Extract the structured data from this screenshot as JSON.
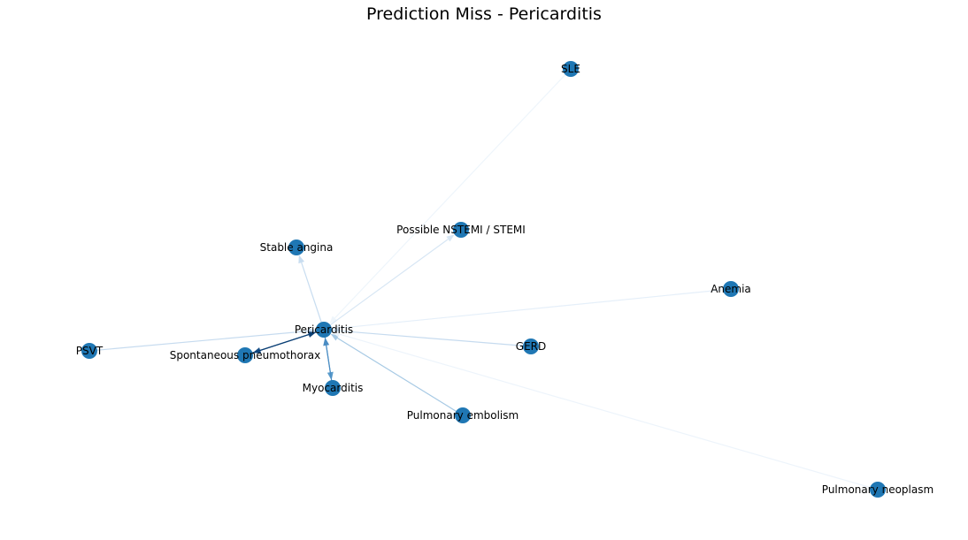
{
  "title": "Prediction Miss - Pericarditis",
  "node_color": "#1f77b4",
  "nodes": [
    {
      "id": "pericarditis",
      "label": "Pericarditis"
    },
    {
      "id": "sle",
      "label": "SLE"
    },
    {
      "id": "nstemi",
      "label": "Possible NSTEMI / STEMI"
    },
    {
      "id": "stable-angina",
      "label": "Stable angina"
    },
    {
      "id": "anemia",
      "label": "Anemia"
    },
    {
      "id": "psvt",
      "label": "PSVT"
    },
    {
      "id": "pneumothorax",
      "label": "Spontaneous pneumothorax"
    },
    {
      "id": "gerd",
      "label": "GERD"
    },
    {
      "id": "myocarditis",
      "label": "Myocarditis"
    },
    {
      "id": "pulmonary-embolism",
      "label": "Pulmonary embolism"
    },
    {
      "id": "pulmonary-neoplasm",
      "label": "Pulmonary neoplasm"
    }
  ],
  "edges": [
    {
      "source": "sle",
      "target": "pericarditis",
      "color": "#eef5fb"
    },
    {
      "source": "pericarditis",
      "target": "nstemi",
      "color": "#d7e6f4"
    },
    {
      "source": "pericarditis",
      "target": "stable-angina",
      "color": "#c8ddf0"
    },
    {
      "source": "anemia",
      "target": "pericarditis",
      "color": "#e5eff9"
    },
    {
      "source": "psvt",
      "target": "pericarditis",
      "color": "#c6dbef"
    },
    {
      "source": "gerd",
      "target": "pericarditis",
      "color": "#c6dbef"
    },
    {
      "source": "pulmonary-embolism",
      "target": "pericarditis",
      "color": "#a6c9e4"
    },
    {
      "source": "pulmonary-neoplasm",
      "target": "pericarditis",
      "color": "#edf4fb"
    },
    {
      "source": "pericarditis",
      "target": "myocarditis",
      "color": "#5a9ccc"
    },
    {
      "source": "myocarditis",
      "target": "pericarditis",
      "color": "#4a8cc3"
    },
    {
      "source": "pericarditis",
      "target": "pneumothorax",
      "color": "#174f88"
    },
    {
      "source": "pneumothorax",
      "target": "pericarditis",
      "color": "#0b3f74"
    }
  ]
}
